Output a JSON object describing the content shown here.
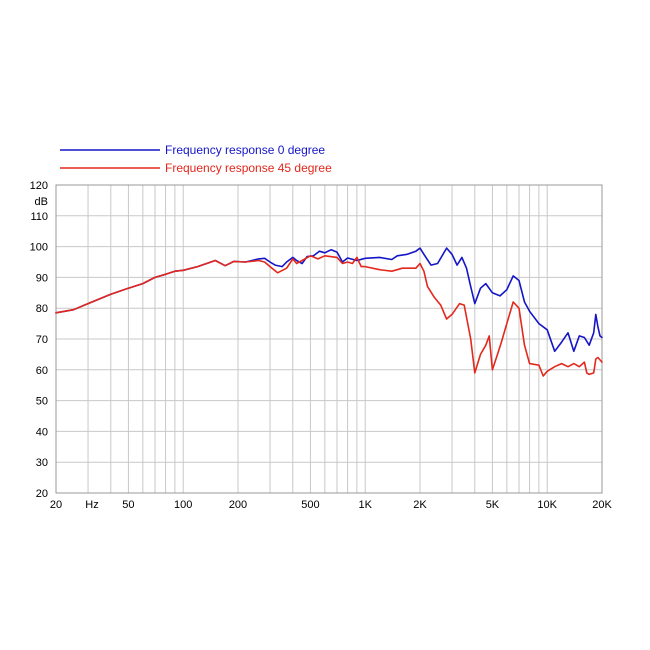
{
  "chart_data": {
    "type": "line",
    "xscale": "log",
    "xlim": [
      20,
      20000
    ],
    "ylim": [
      20,
      120
    ],
    "grid": true,
    "ylabel": "dB",
    "xlabel": "Hz",
    "legend_position": "top-left",
    "x_ticks": [
      {
        "value": 20,
        "label": "20"
      },
      {
        "value": 50,
        "label": "50"
      },
      {
        "value": 100,
        "label": "100"
      },
      {
        "value": 200,
        "label": "200"
      },
      {
        "value": 500,
        "label": "500"
      },
      {
        "value": 1000,
        "label": "1K"
      },
      {
        "value": 2000,
        "label": "2K"
      },
      {
        "value": 5000,
        "label": "5K"
      },
      {
        "value": 10000,
        "label": "10K"
      },
      {
        "value": 20000,
        "label": "20K"
      }
    ],
    "y_ticks": [
      20,
      30,
      40,
      50,
      60,
      70,
      80,
      90,
      100,
      110,
      120
    ],
    "series": [
      {
        "name": "Frequency response 0 degree",
        "color": "#1515c8",
        "points": [
          [
            20,
            78.5
          ],
          [
            25,
            79.5
          ],
          [
            30,
            81.5
          ],
          [
            40,
            84.5
          ],
          [
            50,
            86.5
          ],
          [
            60,
            88
          ],
          [
            70,
            90
          ],
          [
            80,
            91
          ],
          [
            90,
            92
          ],
          [
            100,
            92.3
          ],
          [
            120,
            93.5
          ],
          [
            150,
            95.5
          ],
          [
            170,
            93.8
          ],
          [
            190,
            95.2
          ],
          [
            220,
            95
          ],
          [
            260,
            96
          ],
          [
            280,
            96.2
          ],
          [
            300,
            95
          ],
          [
            320,
            94
          ],
          [
            350,
            93.5
          ],
          [
            370,
            95
          ],
          [
            400,
            96.5
          ],
          [
            420,
            95.5
          ],
          [
            450,
            94.5
          ],
          [
            480,
            96.8
          ],
          [
            520,
            97
          ],
          [
            560,
            98.5
          ],
          [
            600,
            98
          ],
          [
            650,
            99
          ],
          [
            700,
            98.2
          ],
          [
            750,
            95
          ],
          [
            800,
            96.3
          ],
          [
            900,
            95.5
          ],
          [
            1000,
            96.2
          ],
          [
            1200,
            96.5
          ],
          [
            1400,
            95.8
          ],
          [
            1500,
            97
          ],
          [
            1700,
            97.5
          ],
          [
            1900,
            98.5
          ],
          [
            2000,
            99.5
          ],
          [
            2100,
            97.5
          ],
          [
            2300,
            94
          ],
          [
            2500,
            94.5
          ],
          [
            2800,
            99.5
          ],
          [
            3000,
            97.5
          ],
          [
            3200,
            94
          ],
          [
            3400,
            96.5
          ],
          [
            3600,
            93
          ],
          [
            3800,
            87
          ],
          [
            4000,
            81.5
          ],
          [
            4300,
            86.5
          ],
          [
            4600,
            88
          ],
          [
            5000,
            85
          ],
          [
            5500,
            84
          ],
          [
            6000,
            86
          ],
          [
            6500,
            90.5
          ],
          [
            7000,
            89
          ],
          [
            7500,
            82
          ],
          [
            8000,
            79
          ],
          [
            9000,
            75
          ],
          [
            10000,
            73
          ],
          [
            11000,
            66
          ],
          [
            12000,
            69
          ],
          [
            13000,
            72
          ],
          [
            14000,
            66
          ],
          [
            15000,
            71
          ],
          [
            16000,
            70.5
          ],
          [
            17000,
            68
          ],
          [
            18000,
            72
          ],
          [
            18500,
            78
          ],
          [
            19000,
            74
          ],
          [
            19500,
            71
          ],
          [
            20000,
            70.5
          ]
        ]
      },
      {
        "name": "Frequency response 45 degree",
        "color": "#e3281c",
        "points": [
          [
            20,
            78.5
          ],
          [
            25,
            79.5
          ],
          [
            30,
            81.5
          ],
          [
            40,
            84.5
          ],
          [
            50,
            86.5
          ],
          [
            60,
            88
          ],
          [
            70,
            90
          ],
          [
            80,
            91
          ],
          [
            90,
            92
          ],
          [
            100,
            92.3
          ],
          [
            120,
            93.5
          ],
          [
            150,
            95.5
          ],
          [
            170,
            93.8
          ],
          [
            190,
            95.2
          ],
          [
            220,
            95
          ],
          [
            260,
            95.5
          ],
          [
            280,
            95
          ],
          [
            300,
            93.5
          ],
          [
            330,
            91.5
          ],
          [
            370,
            93
          ],
          [
            400,
            96
          ],
          [
            420,
            94.5
          ],
          [
            450,
            95.5
          ],
          [
            500,
            97
          ],
          [
            550,
            96
          ],
          [
            600,
            97
          ],
          [
            700,
            96.5
          ],
          [
            750,
            94.5
          ],
          [
            800,
            95
          ],
          [
            850,
            94.5
          ],
          [
            900,
            96.5
          ],
          [
            950,
            93.5
          ],
          [
            1000,
            93.5
          ],
          [
            1200,
            92.5
          ],
          [
            1400,
            92
          ],
          [
            1600,
            93
          ],
          [
            1900,
            93
          ],
          [
            2000,
            94.5
          ],
          [
            2100,
            92
          ],
          [
            2200,
            87
          ],
          [
            2400,
            83.5
          ],
          [
            2600,
            81
          ],
          [
            2800,
            76.5
          ],
          [
            3000,
            78
          ],
          [
            3300,
            81.5
          ],
          [
            3500,
            81
          ],
          [
            3800,
            70
          ],
          [
            4000,
            59
          ],
          [
            4300,
            65
          ],
          [
            4600,
            68
          ],
          [
            4800,
            71
          ],
          [
            5000,
            60
          ],
          [
            5300,
            64.5
          ],
          [
            5600,
            69
          ],
          [
            6000,
            75
          ],
          [
            6500,
            82
          ],
          [
            7000,
            80
          ],
          [
            7500,
            68
          ],
          [
            8000,
            62
          ],
          [
            9000,
            61.5
          ],
          [
            9500,
            58
          ],
          [
            10000,
            59.5
          ],
          [
            11000,
            61
          ],
          [
            12000,
            62
          ],
          [
            13000,
            61
          ],
          [
            14000,
            62
          ],
          [
            15000,
            61
          ],
          [
            16000,
            62.5
          ],
          [
            16500,
            59
          ],
          [
            17000,
            58.5
          ],
          [
            18000,
            59
          ],
          [
            18500,
            63.5
          ],
          [
            19000,
            64
          ],
          [
            20000,
            62.5
          ]
        ]
      }
    ]
  }
}
